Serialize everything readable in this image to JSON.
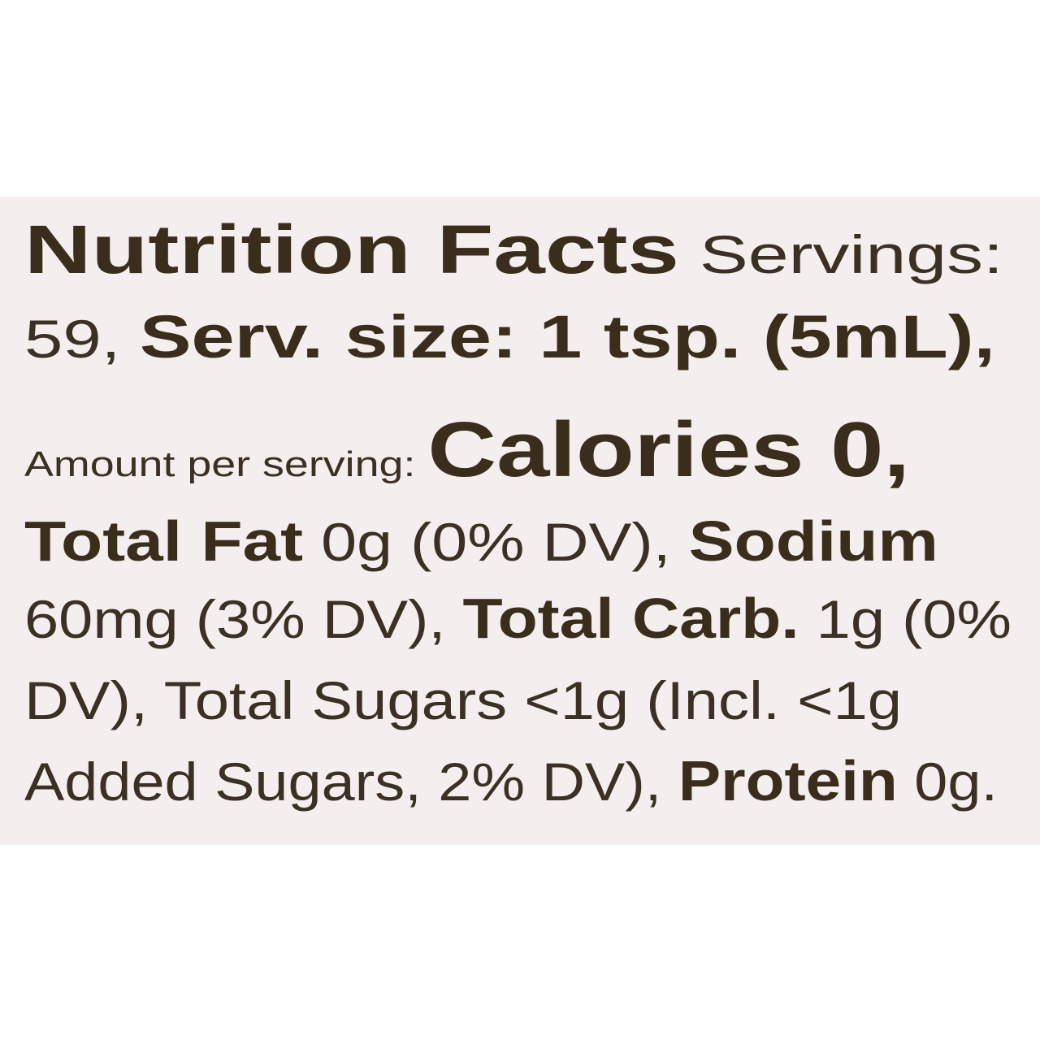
{
  "lines": [
    [
      {
        "text": "Nutrition Facts",
        "bold": true
      },
      {
        "text": " Servings:",
        "bold": false
      }
    ],
    [
      {
        "text": "59, ",
        "bold": false
      },
      {
        "text": "Serv. size: 1 tsp. (5mL),",
        "bold": true
      }
    ],
    [
      {
        "text": "Amount per serving: ",
        "bold": false
      },
      {
        "text": "Calories 0,",
        "bold": true
      }
    ],
    [
      {
        "text": "Total Fat",
        "bold": true
      },
      {
        "text": " 0g (0% DV), ",
        "bold": false
      },
      {
        "text": "Sodium",
        "bold": true
      }
    ],
    [
      {
        "text": "60mg (3% DV), ",
        "bold": false
      },
      {
        "text": "Total Carb.",
        "bold": true
      },
      {
        "text": " 1g (0%",
        "bold": false
      }
    ],
    [
      {
        "text": "DV), Total Sugars <1g (Incl. <1g",
        "bold": false
      }
    ],
    [
      {
        "text": "Added Sugars, 2% DV), ",
        "bold": false
      },
      {
        "text": "Protein",
        "bold": true
      },
      {
        "text": " 0g.",
        "bold": false
      }
    ]
  ]
}
